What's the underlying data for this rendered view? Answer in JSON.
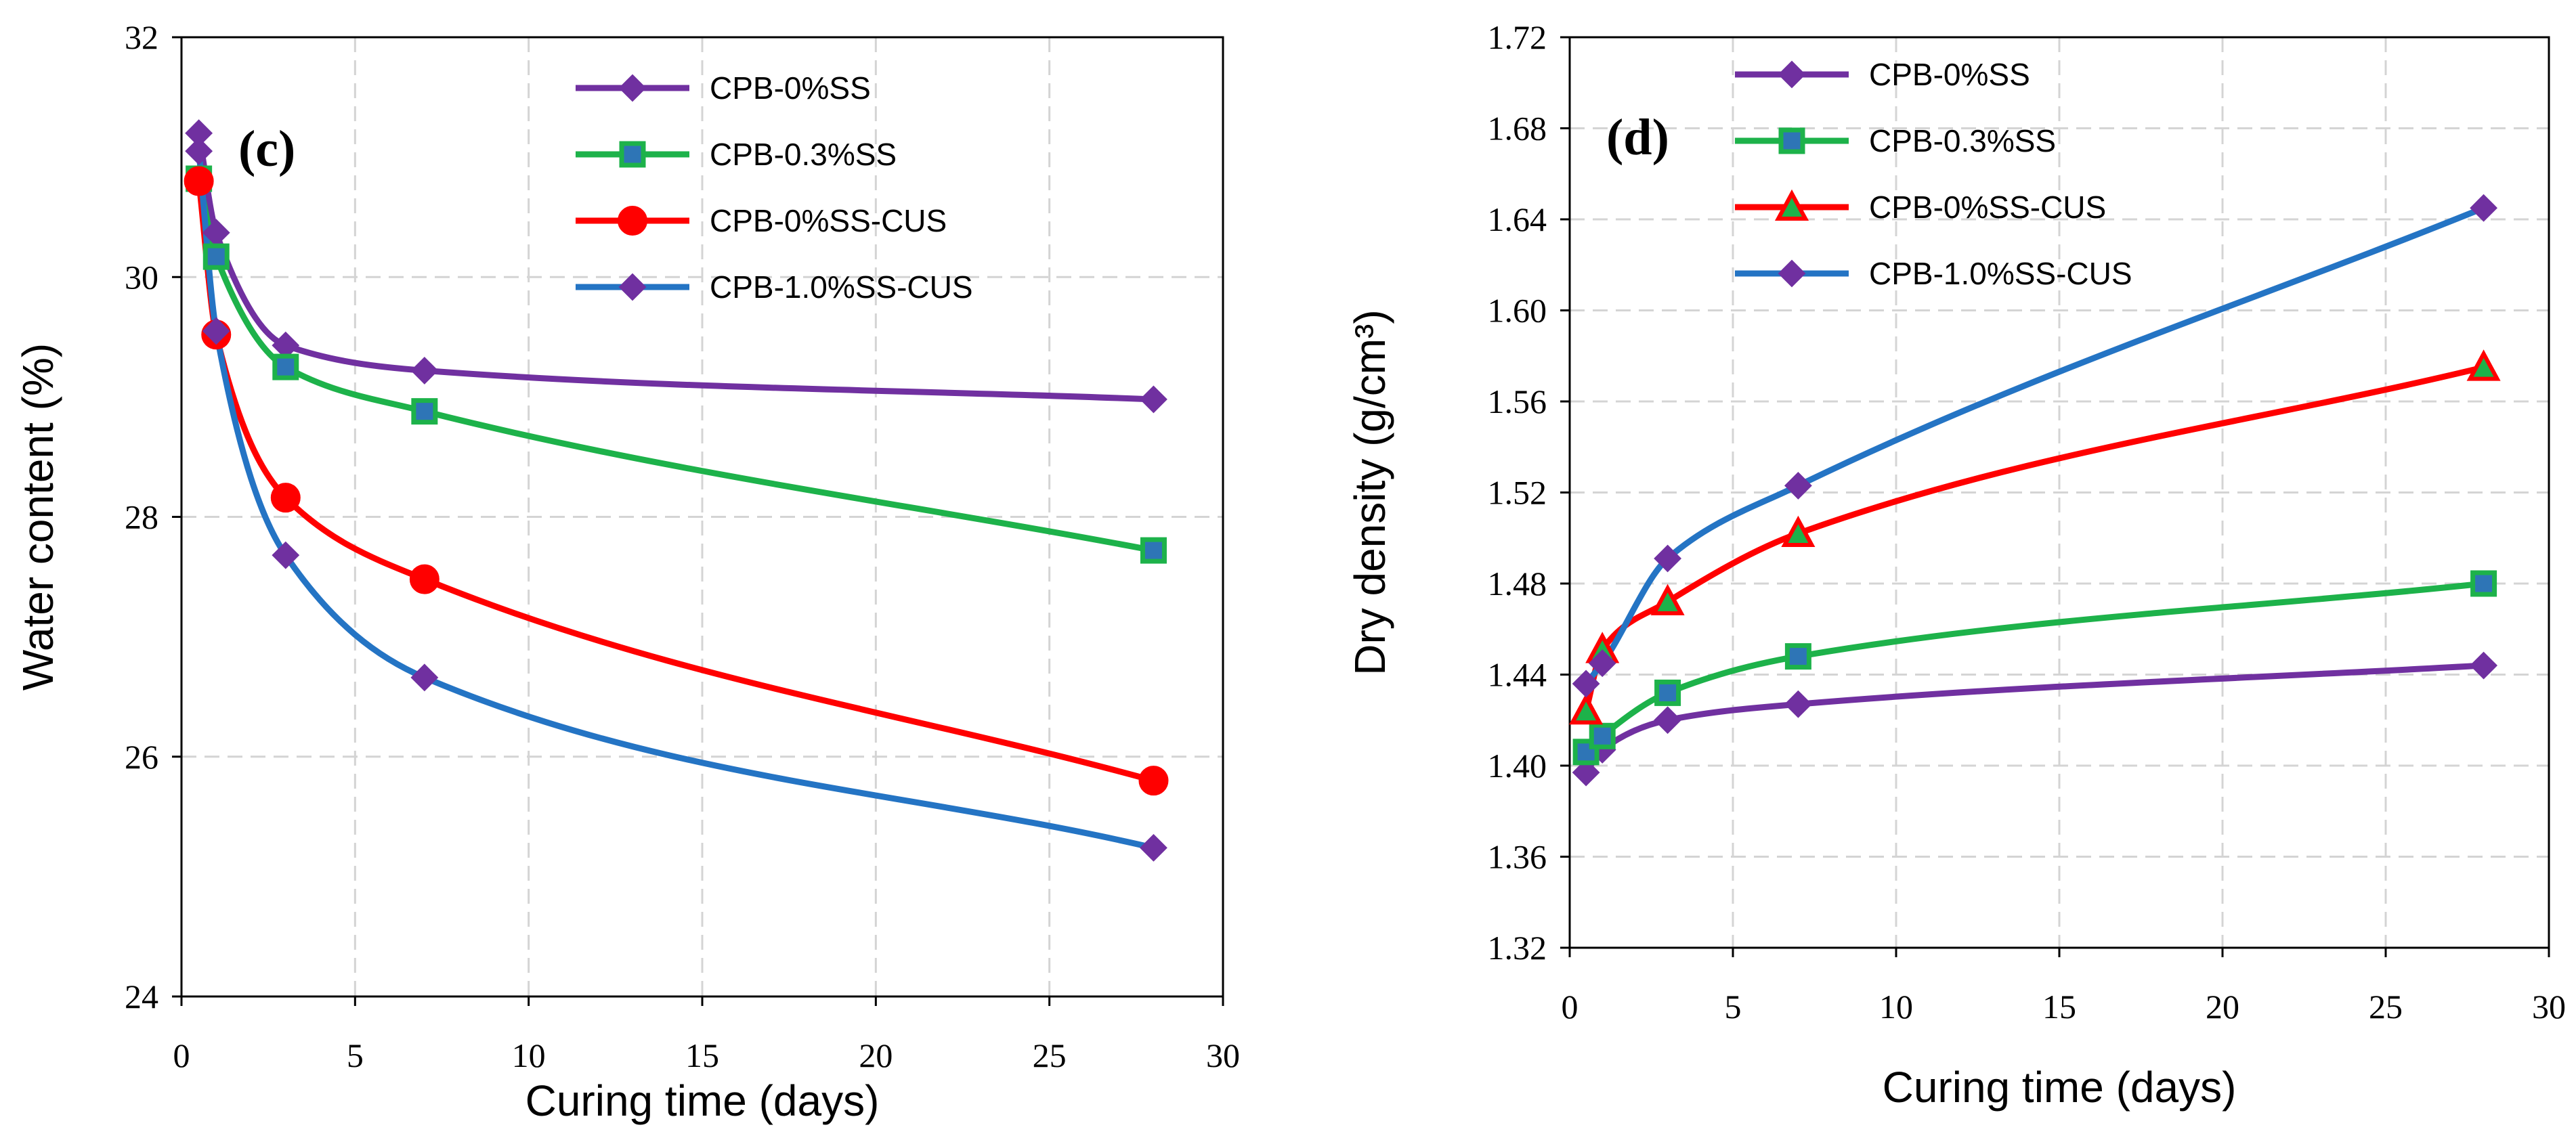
{
  "chart_data": [
    {
      "type": "line",
      "panel_label": "(c)",
      "xlabel": "Curing time (days)",
      "ylabel": "Water content (%)",
      "xlim": [
        0,
        30
      ],
      "ylim": [
        24,
        32
      ],
      "xticks": [
        0,
        5,
        10,
        15,
        20,
        25,
        30
      ],
      "yticks": [
        24,
        26,
        28,
        30,
        32
      ],
      "x_tick_labels": [
        "0",
        "5",
        "10",
        "15",
        "20",
        "25",
        "30"
      ],
      "y_tick_labels": [
        "24",
        "26",
        "28",
        "30",
        "32"
      ],
      "grid": true,
      "legend_position": "top-right",
      "series": [
        {
          "name": "CPB-0%SS",
          "color": "#7030A0",
          "marker": "diamond",
          "marker_fill": "#7030A0",
          "x": [
            0.5,
            1,
            3,
            7,
            28
          ],
          "y": [
            31.2,
            30.37,
            29.43,
            29.22,
            28.98
          ]
        },
        {
          "name": "CPB-0.3%SS",
          "color": "#1DB24A",
          "marker": "square",
          "marker_fill": "#2E75B6",
          "x": [
            0.5,
            1,
            3,
            7,
            28
          ],
          "y": [
            30.82,
            30.17,
            29.25,
            28.88,
            27.72
          ]
        },
        {
          "name": "CPB-0%SS-CUS",
          "color": "#FF0000",
          "marker": "circle",
          "marker_fill": "#FF0000",
          "x": [
            0.5,
            1,
            3,
            7,
            28
          ],
          "y": [
            30.8,
            29.52,
            28.16,
            27.48,
            25.8
          ]
        },
        {
          "name": "CPB-1.0%SS-CUS",
          "color": "#2474C4",
          "marker": "diamond",
          "marker_fill": "#7030A0",
          "x": [
            0.5,
            1,
            3,
            7,
            28
          ],
          "y": [
            31.05,
            29.55,
            27.68,
            26.66,
            25.24
          ]
        }
      ]
    },
    {
      "type": "line",
      "panel_label": "(d)",
      "xlabel": "Curing time (days)",
      "ylabel": "Dry density (g/cm³)",
      "xlim": [
        0,
        30
      ],
      "ylim": [
        1.32,
        1.72
      ],
      "xticks": [
        0,
        5,
        10,
        15,
        20,
        25,
        30
      ],
      "yticks": [
        1.32,
        1.36,
        1.4,
        1.44,
        1.48,
        1.52,
        1.56,
        1.6,
        1.64,
        1.68,
        1.72
      ],
      "x_tick_labels": [
        "0",
        "5",
        "10",
        "15",
        "20",
        "25",
        "30"
      ],
      "y_tick_labels": [
        "1.32",
        "1.36",
        "1.40",
        "1.44",
        "1.48",
        "1.52",
        "1.56",
        "1.60",
        "1.64",
        "1.68",
        "1.72"
      ],
      "grid": true,
      "legend_position": "top-left",
      "series": [
        {
          "name": "CPB-0%SS",
          "color": "#7030A0",
          "marker": "diamond",
          "marker_fill": "#7030A0",
          "x": [
            0.5,
            1,
            3,
            7,
            28
          ],
          "y": [
            1.397,
            1.407,
            1.42,
            1.427,
            1.444
          ]
        },
        {
          "name": "CPB-0.3%SS",
          "color": "#1DB24A",
          "marker": "square",
          "marker_fill": "#2E75B6",
          "x": [
            0.5,
            1,
            3,
            7,
            28
          ],
          "y": [
            1.406,
            1.413,
            1.432,
            1.448,
            1.48
          ]
        },
        {
          "name": "CPB-0%SS-CUS",
          "color": "#FF0000",
          "marker": "triangle",
          "marker_fill": "#1DB24A",
          "x": [
            0.5,
            1,
            3,
            7,
            28
          ],
          "y": [
            1.424,
            1.451,
            1.472,
            1.502,
            1.575
          ]
        },
        {
          "name": "CPB-1.0%SS-CUS",
          "color": "#2474C4",
          "marker": "diamond",
          "marker_fill": "#7030A0",
          "x": [
            0.5,
            1,
            3,
            7,
            28
          ],
          "y": [
            1.436,
            1.445,
            1.491,
            1.523,
            1.645
          ]
        }
      ]
    }
  ]
}
